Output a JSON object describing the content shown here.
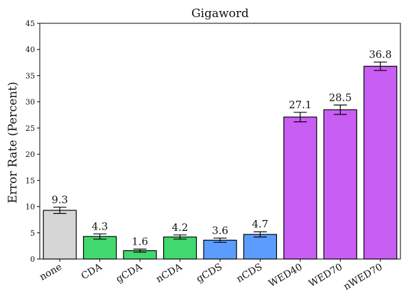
{
  "chart_data": {
    "type": "bar",
    "title": "Gigaword",
    "xlabel": "",
    "ylabel": "Error Rate (Percent)",
    "ylim": [
      0,
      45
    ],
    "yticks": [
      0,
      5,
      10,
      15,
      20,
      25,
      30,
      35,
      40,
      45
    ],
    "grid": false,
    "categories": [
      "none",
      "CDA",
      "gCDA",
      "nCDA",
      "gCDS",
      "nCDS",
      "WED40",
      "WED70",
      "nWED70"
    ],
    "values": [
      9.3,
      4.3,
      1.6,
      4.2,
      3.6,
      4.7,
      27.1,
      28.5,
      36.8
    ],
    "value_labels": [
      "9.3",
      "4.3",
      "1.6",
      "4.2",
      "3.6",
      "4.7",
      "27.1",
      "28.5",
      "36.8"
    ],
    "error_bars": [
      0.6,
      0.5,
      0.3,
      0.4,
      0.4,
      0.5,
      0.9,
      0.9,
      0.8
    ],
    "colors": [
      "#d6d6d6",
      "#41d96f",
      "#41d96f",
      "#41d96f",
      "#5b9dff",
      "#5b9dff",
      "#c95ef5",
      "#c95ef5",
      "#c95ef5"
    ]
  }
}
